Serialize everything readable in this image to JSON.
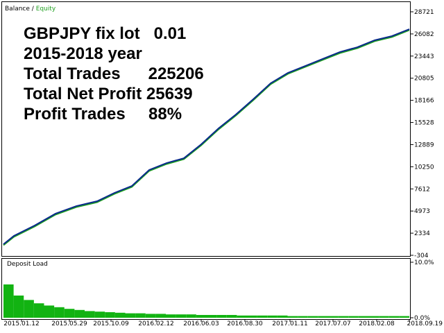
{
  "chart_data": [
    {
      "type": "line",
      "legend_separator": "/",
      "annotations": [
        "GBPJPY fix lot   0.01",
        "2015-2018 year",
        "Total Trades      225206",
        "Total Net Profit 25639",
        "Profit Trades     88%"
      ],
      "annotation_color": "#e0202a",
      "x": [
        0,
        5775,
        17325,
        28875,
        40425,
        51975,
        61600,
        71225,
        80850,
        90475,
        100100,
        109725,
        119350,
        128975,
        138600,
        148225,
        157850,
        167475,
        177100,
        186725,
        196350,
        205975,
        215600,
        225206
      ],
      "series": [
        {
          "name": "Balance",
          "color": "#0a2a8c",
          "values": [
            1017,
            2010,
            3250,
            4660,
            5565,
            6145,
            7140,
            7960,
            9870,
            10690,
            11270,
            12925,
            14830,
            16480,
            18300,
            20200,
            21440,
            22270,
            23100,
            23925,
            24500,
            25330,
            25830,
            26650
          ]
        },
        {
          "name": "Equity",
          "color": "#1fa01f",
          "values": [
            900,
            1890,
            3130,
            4540,
            5440,
            6020,
            7020,
            7840,
            9750,
            10570,
            11150,
            12800,
            14700,
            16360,
            18180,
            20080,
            21320,
            22150,
            22980,
            23800,
            24380,
            25210,
            25710,
            26530
          ]
        }
      ],
      "xlim": [
        0,
        225206
      ],
      "xticks": [
        {
          "value": 10009,
          "label": "2015.01.12"
        },
        {
          "value": 36571,
          "label": "2015.05.29"
        },
        {
          "value": 59670,
          "label": "2015.10.09"
        },
        {
          "value": 84693,
          "label": "2016.02.12"
        },
        {
          "value": 109715,
          "label": "2016.06.03"
        },
        {
          "value": 133968,
          "label": "2016.08.30"
        },
        {
          "value": 158992,
          "label": "2017.01.11"
        },
        {
          "value": 182860,
          "label": "2017.07.07"
        },
        {
          "value": 207113,
          "label": "2018.02.08"
        },
        {
          "value": 225206,
          "label": "2018.09.19"
        }
      ],
      "ylim": [
        -304,
        28721
      ],
      "yticks": [
        -304,
        2334,
        4973,
        7612,
        10250,
        12889,
        15528,
        18166,
        20805,
        23443,
        26082,
        28721
      ]
    },
    {
      "type": "bar",
      "title": "Deposit Load",
      "color": "#12b312",
      "categories": [
        null,
        null,
        null,
        null,
        null,
        null,
        null,
        null,
        null,
        null,
        null,
        null,
        null,
        null,
        null,
        null,
        null,
        null,
        null,
        null,
        null,
        null,
        null,
        null,
        null,
        null,
        null,
        null,
        null,
        null,
        null,
        null,
        null,
        null,
        null,
        null,
        null,
        null,
        null,
        null
      ],
      "values": [
        6.0,
        4.0,
        3.2,
        2.6,
        2.2,
        1.9,
        1.6,
        1.4,
        1.2,
        1.1,
        1.0,
        0.9,
        0.8,
        0.8,
        0.7,
        0.7,
        0.6,
        0.6,
        0.6,
        0.5,
        0.5,
        0.5,
        0.5,
        0.4,
        0.4,
        0.4,
        0.4,
        0.4,
        0.3,
        0.3,
        0.3,
        0.3,
        0.3,
        0.3,
        0.3,
        0.3,
        0.3,
        0.3,
        0.3,
        0.3
      ],
      "ylim": [
        0,
        10
      ],
      "yticks": [
        {
          "value": 10,
          "label": "10.0%"
        },
        {
          "value": 0,
          "label": "0.0%"
        }
      ]
    }
  ]
}
